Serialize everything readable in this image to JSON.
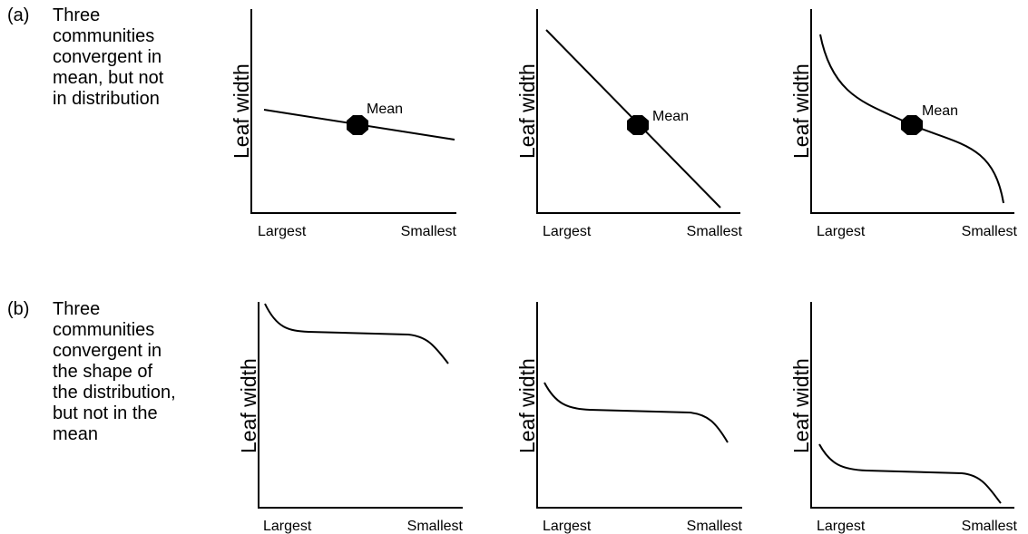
{
  "rows": [
    {
      "tag": "(a)",
      "description": "Three\ncommunities\nconvergent in\nmean, but not\nin distribution",
      "panels": [
        {
          "ylabel": "Leaf width",
          "x_start_label": "Largest",
          "x_end_label": "Smallest",
          "mean_label": "Mean",
          "curve": "linear-shallow"
        },
        {
          "ylabel": "Leaf width",
          "x_start_label": "Largest",
          "x_end_label": "Smallest",
          "mean_label": "Mean",
          "curve": "linear-steep"
        },
        {
          "ylabel": "Leaf width",
          "x_start_label": "Largest",
          "x_end_label": "Smallest",
          "mean_label": "Mean",
          "curve": "sigmoid-steep-ends"
        }
      ]
    },
    {
      "tag": "(b)",
      "description": "Three\ncommunities\nconvergent in\nthe shape of\nthe distribution,\nbut not in the\nmean",
      "panels": [
        {
          "ylabel": "Leaf width",
          "x_start_label": "Largest",
          "x_end_label": "Smallest",
          "curve": "plateau-high"
        },
        {
          "ylabel": "Leaf width",
          "x_start_label": "Largest",
          "x_end_label": "Smallest",
          "curve": "plateau-mid"
        },
        {
          "ylabel": "Leaf width",
          "x_start_label": "Largest",
          "x_end_label": "Smallest",
          "curve": "plateau-low"
        }
      ]
    }
  ]
}
